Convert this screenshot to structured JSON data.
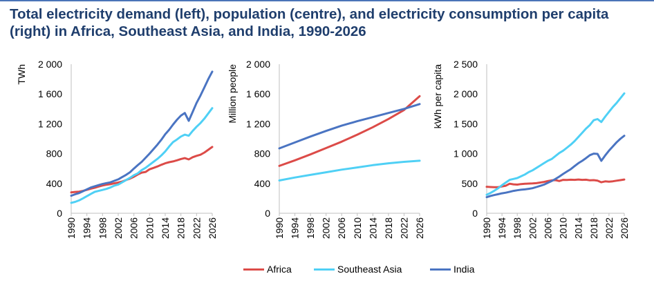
{
  "title": "Total electricity demand (left), population (centre), and electricity consumption per capita (right) in Africa, Southeast Asia, and India, 1990-2026",
  "colors": {
    "Africa": "#dc4b48",
    "Southeast Asia": "#4fd0f5",
    "India": "#4a74c2",
    "axis": "#bfbfbf",
    "title": "#1f3e6d",
    "top_rule": "#4a74b8"
  },
  "legend": [
    {
      "name": "Africa",
      "color": "#dc4b48"
    },
    {
      "name": "Southeast Asia",
      "color": "#4fd0f5"
    },
    {
      "name": "India",
      "color": "#4a74c2"
    }
  ],
  "chart_data": [
    {
      "type": "line",
      "title": "",
      "xlabel": "",
      "ylabel": "TWh",
      "x_ticks": [
        "1990",
        "1994",
        "1998",
        "2002",
        "2006",
        "2010",
        "2014",
        "2018",
        "2022",
        "2026"
      ],
      "y_ticks": [
        "0",
        "400",
        "800",
        "1 200",
        "1 600",
        "2 000"
      ],
      "ylim": [
        0,
        2000
      ],
      "xlim": [
        1990,
        2026
      ],
      "grid": false,
      "x": [
        1990,
        1991,
        1992,
        1993,
        1994,
        1995,
        1996,
        1997,
        1998,
        1999,
        2000,
        2001,
        2002,
        2003,
        2004,
        2005,
        2006,
        2007,
        2008,
        2009,
        2010,
        2011,
        2012,
        2013,
        2014,
        2015,
        2016,
        2017,
        2018,
        2019,
        2020,
        2021,
        2022,
        2023,
        2024,
        2025,
        2026
      ],
      "series": [
        {
          "name": "Africa",
          "values": [
            280,
            286,
            290,
            300,
            315,
            330,
            342,
            358,
            372,
            382,
            390,
            402,
            412,
            425,
            445,
            465,
            490,
            520,
            545,
            555,
            590,
            608,
            628,
            650,
            670,
            685,
            695,
            710,
            728,
            740,
            722,
            752,
            770,
            785,
            815,
            852,
            890
          ]
        },
        {
          "name": "Southeast Asia",
          "values": [
            140,
            153,
            172,
            200,
            230,
            258,
            287,
            300,
            313,
            327,
            345,
            370,
            385,
            415,
            445,
            475,
            510,
            535,
            580,
            610,
            650,
            690,
            730,
            775,
            830,
            895,
            955,
            990,
            1030,
            1055,
            1040,
            1105,
            1160,
            1210,
            1270,
            1340,
            1410
          ]
        },
        {
          "name": "India",
          "values": [
            235,
            255,
            270,
            295,
            320,
            345,
            362,
            378,
            393,
            405,
            415,
            435,
            455,
            485,
            515,
            550,
            600,
            645,
            690,
            745,
            800,
            860,
            920,
            985,
            1060,
            1120,
            1190,
            1255,
            1310,
            1345,
            1240,
            1360,
            1480,
            1580,
            1690,
            1800,
            1900
          ]
        }
      ]
    },
    {
      "type": "line",
      "title": "",
      "xlabel": "",
      "ylabel": "Million people",
      "x_ticks": [
        "1990",
        "1994",
        "1998",
        "2002",
        "2006",
        "2010",
        "2014",
        "2018",
        "2022",
        "2026"
      ],
      "y_ticks": [
        "0",
        "400",
        "800",
        "1 200",
        "1 600",
        "2 000"
      ],
      "ylim": [
        0,
        2000
      ],
      "xlim": [
        1990,
        2026
      ],
      "grid": false,
      "x": [
        1990,
        1994,
        1998,
        2002,
        2006,
        2010,
        2014,
        2018,
        2022,
        2026
      ],
      "series": [
        {
          "name": "Africa",
          "values": [
            635,
            710,
            790,
            875,
            960,
            1055,
            1155,
            1265,
            1385,
            1570
          ]
        },
        {
          "name": "Southeast Asia",
          "values": [
            440,
            480,
            515,
            550,
            585,
            615,
            645,
            670,
            690,
            705
          ]
        },
        {
          "name": "India",
          "values": [
            870,
            950,
            1030,
            1105,
            1175,
            1235,
            1290,
            1345,
            1400,
            1465
          ]
        }
      ]
    },
    {
      "type": "line",
      "title": "",
      "xlabel": "",
      "ylabel": "kWh per capita",
      "x_ticks": [
        "1990",
        "1994",
        "1998",
        "2002",
        "2006",
        "2010",
        "2014",
        "2018",
        "2022",
        "2026"
      ],
      "y_ticks": [
        "0",
        "500",
        "1 000",
        "1 500",
        "2 000",
        "2 500"
      ],
      "ylim": [
        0,
        2500
      ],
      "xlim": [
        1990,
        2026
      ],
      "grid": false,
      "x": [
        1990,
        1991,
        1992,
        1993,
        1994,
        1995,
        1996,
        1997,
        1998,
        1999,
        2000,
        2001,
        2002,
        2003,
        2004,
        2005,
        2006,
        2007,
        2008,
        2009,
        2010,
        2011,
        2012,
        2013,
        2014,
        2015,
        2016,
        2017,
        2018,
        2019,
        2020,
        2021,
        2022,
        2023,
        2024,
        2025,
        2026
      ],
      "series": [
        {
          "name": "Africa",
          "values": [
            445,
            440,
            436,
            438,
            450,
            462,
            495,
            485,
            480,
            490,
            495,
            498,
            500,
            505,
            515,
            525,
            540,
            552,
            555,
            540,
            560,
            558,
            562,
            560,
            566,
            560,
            562,
            552,
            556,
            548,
            520,
            535,
            530,
            536,
            546,
            556,
            566
          ]
        },
        {
          "name": "Southeast Asia",
          "values": [
            310,
            340,
            378,
            420,
            470,
            515,
            560,
            575,
            590,
            620,
            650,
            690,
            720,
            760,
            800,
            840,
            880,
            910,
            960,
            1010,
            1050,
            1100,
            1150,
            1210,
            1280,
            1350,
            1420,
            1480,
            1560,
            1580,
            1530,
            1620,
            1700,
            1780,
            1850,
            1930,
            2010
          ]
        },
        {
          "name": "India",
          "values": [
            270,
            290,
            305,
            320,
            335,
            345,
            360,
            375,
            385,
            395,
            400,
            410,
            420,
            440,
            460,
            480,
            510,
            540,
            575,
            615,
            660,
            700,
            740,
            790,
            840,
            880,
            925,
            975,
            1000,
            995,
            880,
            970,
            1050,
            1120,
            1190,
            1250,
            1300
          ]
        }
      ]
    }
  ]
}
